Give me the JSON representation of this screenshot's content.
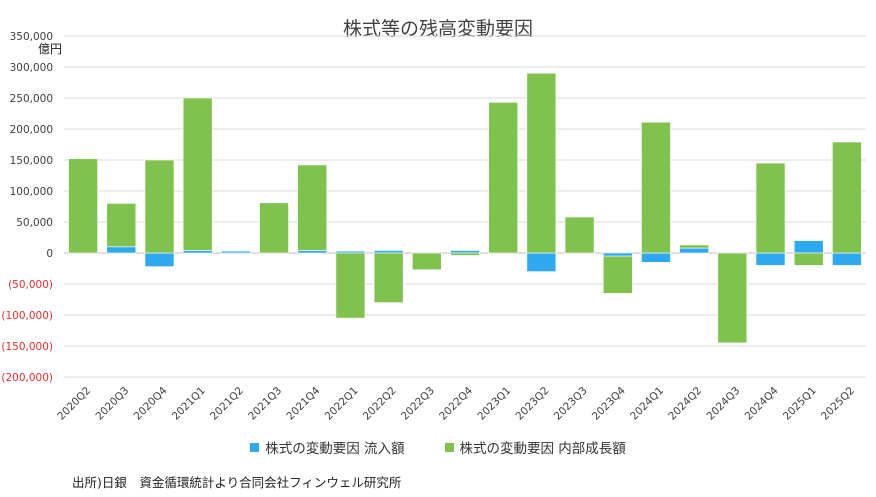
{
  "chart_data": {
    "type": "bar",
    "stacked": true,
    "title": "株式等の残高変動要因",
    "unit_label": "億円",
    "categories": [
      "2020Q2",
      "2020Q3",
      "2020Q4",
      "2021Q1",
      "2021Q2",
      "2021Q3",
      "2021Q4",
      "2022Q1",
      "2022Q2",
      "2022Q3",
      "2022Q4",
      "2023Q1",
      "2023Q2",
      "2023Q3",
      "2023Q4",
      "2024Q1",
      "2024Q2",
      "2024Q3",
      "2024Q4",
      "2025Q1",
      "2025Q2"
    ],
    "series": [
      {
        "name": "株式の変動要因 流入額",
        "color": "#2ea8f0",
        "values": [
          0,
          10000,
          -22000,
          4000,
          3000,
          0,
          4000,
          3000,
          4000,
          0,
          4000,
          0,
          -30000,
          0,
          -5000,
          -15000,
          8000,
          0,
          -20000,
          20000,
          -20000
        ]
      },
      {
        "name": "株式の変動要因 内部成長額",
        "color": "#7fc24e",
        "values": [
          152000,
          70000,
          150000,
          246000,
          0,
          81000,
          138000,
          -105000,
          -80000,
          -27000,
          -4000,
          243000,
          290000,
          58000,
          -60000,
          211000,
          5000,
          -145000,
          145000,
          -20000,
          179000
        ]
      }
    ],
    "ylim": [
      -200000,
      350000
    ],
    "yticks": [
      -200000,
      -150000,
      -100000,
      -50000,
      0,
      50000,
      100000,
      150000,
      200000,
      250000,
      300000,
      350000
    ],
    "ytick_labels": [
      "(200,000)",
      "(150,000)",
      "(100,000)",
      "(50,000)",
      "0",
      "50,000",
      "100,000",
      "150,000",
      "200,000",
      "250,000",
      "300,000",
      "350,000"
    ],
    "negative_tick_color": "#e03030",
    "grid": true,
    "legend_position": "bottom"
  },
  "source": "出所)日銀　資金循環統計より合同会社フィンウェル研究所"
}
